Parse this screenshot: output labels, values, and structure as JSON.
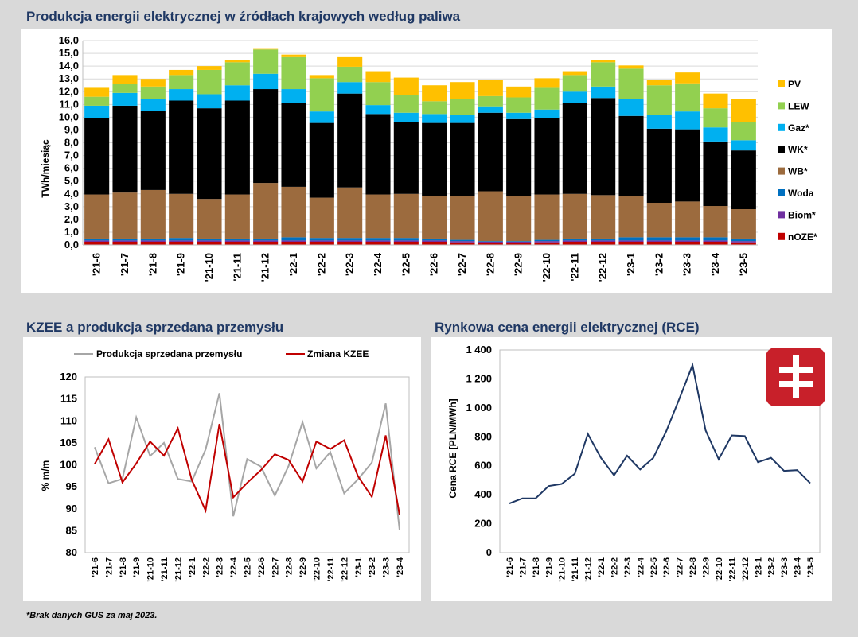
{
  "page": {
    "footnote": "*Brak danych GUS za maj 2023."
  },
  "charts": {
    "top": {
      "title": "Produkcja energii elektrycznej w źródłach krajowych według paliwa",
      "ylabel": "TWh/miesiąc",
      "yticks": [
        "0,0",
        "1,0",
        "2,0",
        "3,0",
        "4,0",
        "5,0",
        "6,0",
        "7,0",
        "8,0",
        "9,0",
        "10,0",
        "11,0",
        "12,0",
        "13,0",
        "14,0",
        "15,0",
        "16,0"
      ]
    },
    "left": {
      "title": "KZEE a produkcja sprzedana przemysłu",
      "ylabel": "% m/m",
      "yticks": [
        "80",
        "85",
        "90",
        "95",
        "100",
        "105",
        "110",
        "115",
        "120"
      ]
    },
    "right": {
      "title": "Rynkowa cena energii elektrycznej (RCE)",
      "ylabel": "Cena RCE [PLN/MWh]",
      "yticks": [
        "0",
        "200",
        "400",
        "600",
        "800",
        "1 000",
        "1 200",
        "1 400"
      ]
    }
  },
  "colors": {
    "PV": "#ffc000",
    "LEW": "#92d050",
    "Gaz": "#00b0f0",
    "WK": "#000000",
    "WB": "#9c6b3e",
    "Woda": "#0070c0",
    "Biom": "#7030a0",
    "nOZE": "#c00000",
    "industry": "#a6a6a6",
    "kzee": "#c00000",
    "rce": "#1f3864",
    "logo": "#c8202a"
  },
  "chart_data": [
    {
      "type": "bar",
      "stacked": true,
      "title": "Produkcja energii elektrycznej w źródłach krajowych według paliwa",
      "ylabel": "TWh/miesiąc",
      "ylim": [
        0,
        16
      ],
      "categories": [
        "'21-6",
        "'21-7",
        "'21-8",
        "'21-9",
        "'21-10",
        "'21-11",
        "'21-12",
        "'22-1",
        "'22-2",
        "'22-3",
        "'22-4",
        "'22-5",
        "'22-6",
        "'22-7",
        "'22-8",
        "'22-9",
        "'22-10",
        "'22-11",
        "'22-12",
        "'23-1",
        "'23-2",
        "'23-3",
        "'23-4",
        "'23-5"
      ],
      "series": [
        {
          "name": "nOZE*",
          "key": "nOZE",
          "values": [
            0.25,
            0.25,
            0.25,
            0.25,
            0.25,
            0.25,
            0.25,
            0.25,
            0.25,
            0.25,
            0.25,
            0.25,
            0.25,
            0.2,
            0.15,
            0.15,
            0.2,
            0.25,
            0.25,
            0.25,
            0.25,
            0.25,
            0.25,
            0.2
          ]
        },
        {
          "name": "Biom*",
          "key": "Biom",
          "values": [
            0.1,
            0.1,
            0.1,
            0.1,
            0.1,
            0.1,
            0.1,
            0.1,
            0.1,
            0.1,
            0.1,
            0.1,
            0.1,
            0.1,
            0.1,
            0.1,
            0.1,
            0.1,
            0.1,
            0.1,
            0.1,
            0.1,
            0.1,
            0.1
          ]
        },
        {
          "name": "Woda",
          "key": "Woda",
          "values": [
            0.15,
            0.15,
            0.15,
            0.2,
            0.15,
            0.15,
            0.15,
            0.25,
            0.2,
            0.2,
            0.2,
            0.2,
            0.15,
            0.1,
            0.05,
            0.05,
            0.1,
            0.15,
            0.15,
            0.25,
            0.25,
            0.25,
            0.25,
            0.2
          ]
        },
        {
          "name": "WB*",
          "key": "WB",
          "values": [
            3.45,
            3.6,
            3.8,
            3.45,
            3.1,
            3.45,
            4.35,
            3.95,
            3.15,
            3.95,
            3.4,
            3.45,
            3.35,
            3.45,
            3.9,
            3.5,
            3.55,
            3.5,
            3.4,
            3.2,
            2.7,
            2.8,
            2.45,
            2.3
          ]
        },
        {
          "name": "WK*",
          "key": "WK",
          "values": [
            5.95,
            6.8,
            6.2,
            7.3,
            7.1,
            7.35,
            7.35,
            6.55,
            5.85,
            7.35,
            6.3,
            5.65,
            5.7,
            5.7,
            6.15,
            6.05,
            5.95,
            7.1,
            7.6,
            6.3,
            5.8,
            5.65,
            5.05,
            4.6
          ]
        },
        {
          "name": "Gaz*",
          "key": "Gaz",
          "values": [
            1.0,
            1.0,
            0.9,
            0.9,
            1.1,
            1.2,
            1.2,
            1.1,
            0.9,
            0.9,
            0.7,
            0.7,
            0.7,
            0.6,
            0.5,
            0.5,
            0.7,
            0.9,
            0.9,
            1.3,
            1.1,
            1.4,
            1.1,
            0.8
          ]
        },
        {
          "name": "LEW",
          "key": "LEW",
          "values": [
            0.7,
            0.7,
            1.0,
            1.1,
            1.9,
            1.8,
            1.9,
            2.5,
            2.6,
            1.2,
            1.8,
            1.4,
            1.0,
            1.3,
            0.8,
            1.2,
            1.7,
            1.3,
            1.9,
            2.4,
            2.3,
            2.2,
            1.5,
            1.4
          ]
        },
        {
          "name": "PV",
          "key": "PV",
          "values": [
            0.7,
            0.7,
            0.6,
            0.4,
            0.3,
            0.2,
            0.1,
            0.2,
            0.25,
            0.75,
            0.85,
            1.35,
            1.25,
            1.3,
            1.25,
            0.85,
            0.75,
            0.3,
            0.15,
            0.25,
            0.45,
            0.85,
            1.15,
            1.8
          ]
        }
      ],
      "legend": [
        "PV",
        "LEW",
        "Gaz*",
        "WK*",
        "WB*",
        "Woda",
        "Biom*",
        "nOZE*"
      ],
      "legend_position": "right"
    },
    {
      "type": "line",
      "title": "KZEE a produkcja sprzedana przemysłu",
      "ylabel": "% m/m",
      "ylim": [
        80,
        120
      ],
      "categories": [
        "'21-6",
        "'21-7",
        "'21-8",
        "'21-9",
        "'21-10",
        "'21-11",
        "'21-12",
        "'22-1",
        "'22-2",
        "'22-3",
        "'22-4",
        "'22-5",
        "'22-6",
        "'22-7",
        "'22-8",
        "'22-9",
        "'22-10",
        "'22-11",
        "'22-12",
        "'23-1",
        "'23-2",
        "'23-3",
        "'23-4"
      ],
      "series": [
        {
          "name": "Produkcja sprzedana przemysłu",
          "key": "industry",
          "values": [
            104,
            95.8,
            96.8,
            110.8,
            102,
            105,
            96.8,
            96.2,
            103.5,
            116.3,
            88.3,
            101.3,
            99.6,
            93,
            99.8,
            109.7,
            99.2,
            102.9,
            93.5,
            96.7,
            100.5,
            114,
            85.2
          ]
        },
        {
          "name": "Zmiana KZEE",
          "key": "kzee",
          "values": [
            100.2,
            105.8,
            96,
            100.3,
            105.3,
            102.1,
            108.3,
            96.6,
            89.6,
            109.3,
            92.6,
            95.9,
            98.8,
            102.4,
            101.1,
            96.2,
            105.3,
            103.6,
            105.6,
            97.4,
            92.7,
            106.7,
            88.6
          ]
        }
      ],
      "legend_position": "top"
    },
    {
      "type": "line",
      "title": "Rynkowa cena energii elektrycznej (RCE)",
      "ylabel": "Cena RCE [PLN/MWh]",
      "ylim": [
        0,
        1400
      ],
      "categories": [
        "'21-6",
        "'21-7",
        "'21-8",
        "'21-9",
        "'21-10",
        "'21-11",
        "'21-12",
        "'22-1",
        "'22-2",
        "'22-3",
        "'22-4",
        "'22-5",
        "'22-6",
        "'22-7",
        "'22-8",
        "'22-9",
        "'22-10",
        "'22-11",
        "'22-12",
        "'23-1",
        "'23-2",
        "'23-3",
        "'23-4",
        "'23-5"
      ],
      "series": [
        {
          "name": "RCE",
          "key": "rce",
          "values": [
            340,
            375,
            375,
            460,
            475,
            545,
            820,
            655,
            535,
            670,
            575,
            655,
            840,
            1065,
            1295,
            845,
            645,
            810,
            805,
            625,
            655,
            565,
            570,
            480
          ]
        }
      ]
    }
  ]
}
